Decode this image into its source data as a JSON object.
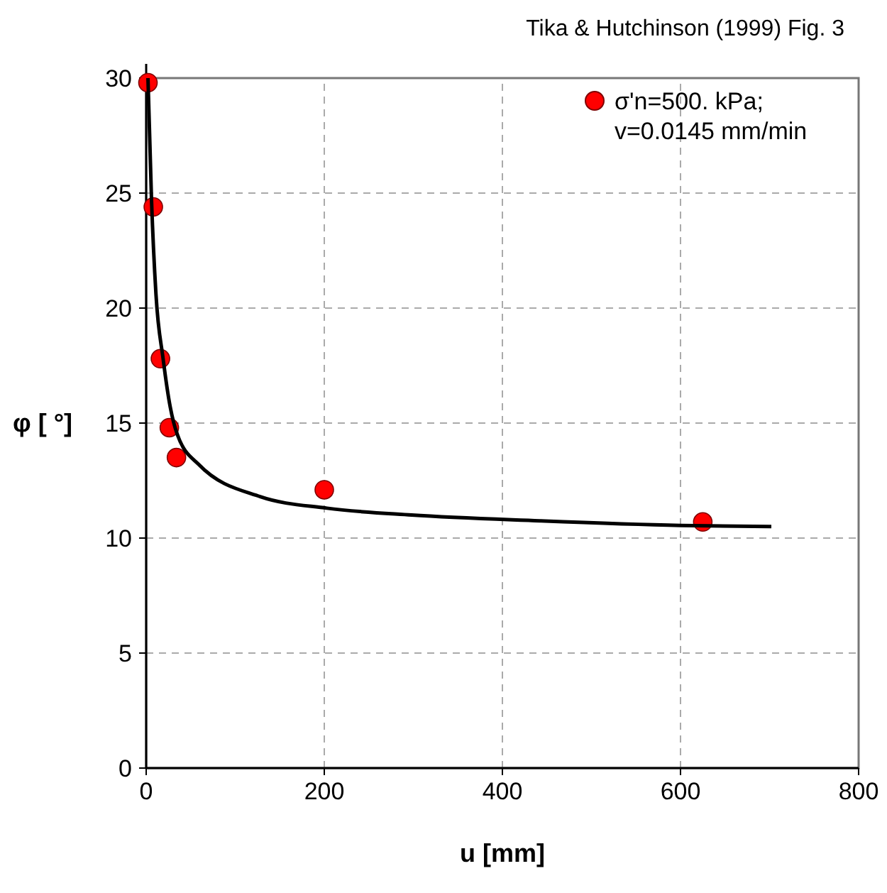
{
  "chart_data": {
    "type": "scatter",
    "title": "Tika & Hutchinson (1999) Fig. 3",
    "xlabel": "u [mm]",
    "ylabel": "φ [ °]",
    "xlim": [
      0,
      800
    ],
    "xticks": [
      0,
      200,
      400,
      600,
      800
    ],
    "ylim": [
      0,
      30
    ],
    "yticks": [
      0,
      5,
      10,
      15,
      20,
      25,
      30
    ],
    "grid": true,
    "legend": "top right",
    "series": [
      {
        "type": "scatter",
        "name": "σ'n=500. kPa;\nv=0.0145 mm/min",
        "color": "#ff0000",
        "marker": "circle",
        "x": [
          2,
          8,
          16,
          26,
          34,
          200,
          625
        ],
        "values": [
          29.8,
          24.4,
          17.8,
          14.8,
          13.5,
          12.1,
          10.7
        ]
      },
      {
        "type": "line",
        "color": "#000000",
        "line_style": "solid",
        "x": [
          2,
          6,
          11,
          19,
          27,
          35,
          59,
          128,
          203,
          298,
          442,
          600,
          702
        ],
        "values": [
          30,
          24.7,
          20.6,
          17.8,
          15.7,
          14.5,
          13.2,
          11.8,
          11.3,
          11.0,
          10.75,
          10.55,
          10.5
        ]
      }
    ]
  }
}
